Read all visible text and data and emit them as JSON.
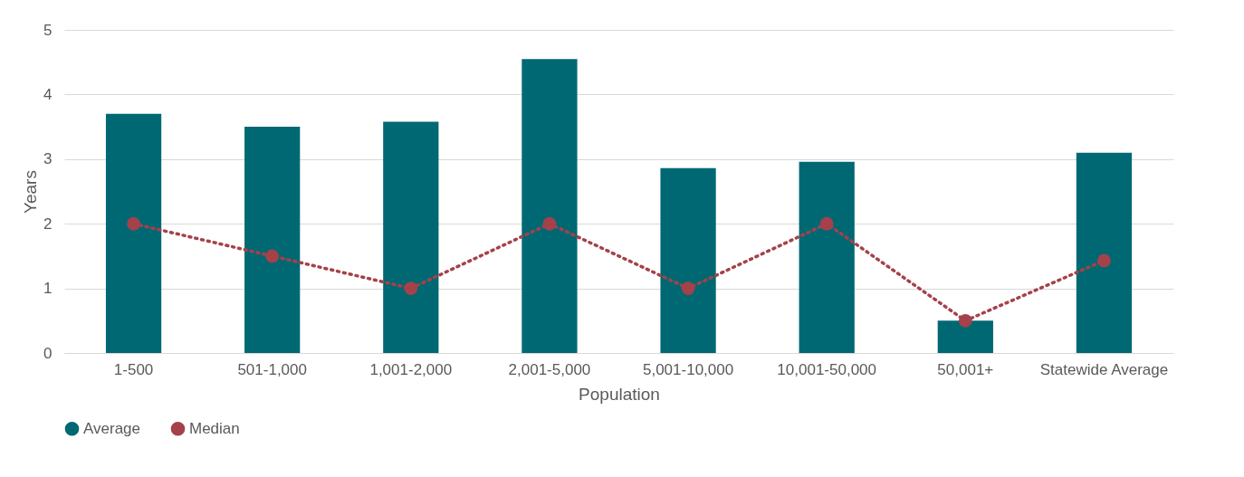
{
  "chart_data": {
    "type": "bar",
    "xlabel": "Population",
    "ylabel": "Years",
    "categories": [
      "1-500",
      "501-1,000",
      "1,001-2,000",
      "2,001-5,000",
      "5,001-10,000",
      "10,001-50,000",
      "50,001+",
      "Statewide Average"
    ],
    "series": [
      {
        "name": "Average",
        "color": "#006872",
        "values": [
          3.7,
          3.5,
          3.58,
          4.55,
          2.86,
          2.96,
          0.5,
          3.1
        ]
      },
      {
        "name": "Median",
        "type": "line",
        "color": "#a5414a",
        "line_style": "dotted",
        "marker": "circle",
        "values": [
          2,
          1.5,
          1,
          2,
          1,
          2,
          0.5,
          1.43
        ]
      }
    ],
    "ylim": [
      0,
      5
    ],
    "yticks": [
      0,
      1,
      2,
      3,
      4,
      5
    ],
    "grid": "y",
    "legend": "bottom"
  }
}
